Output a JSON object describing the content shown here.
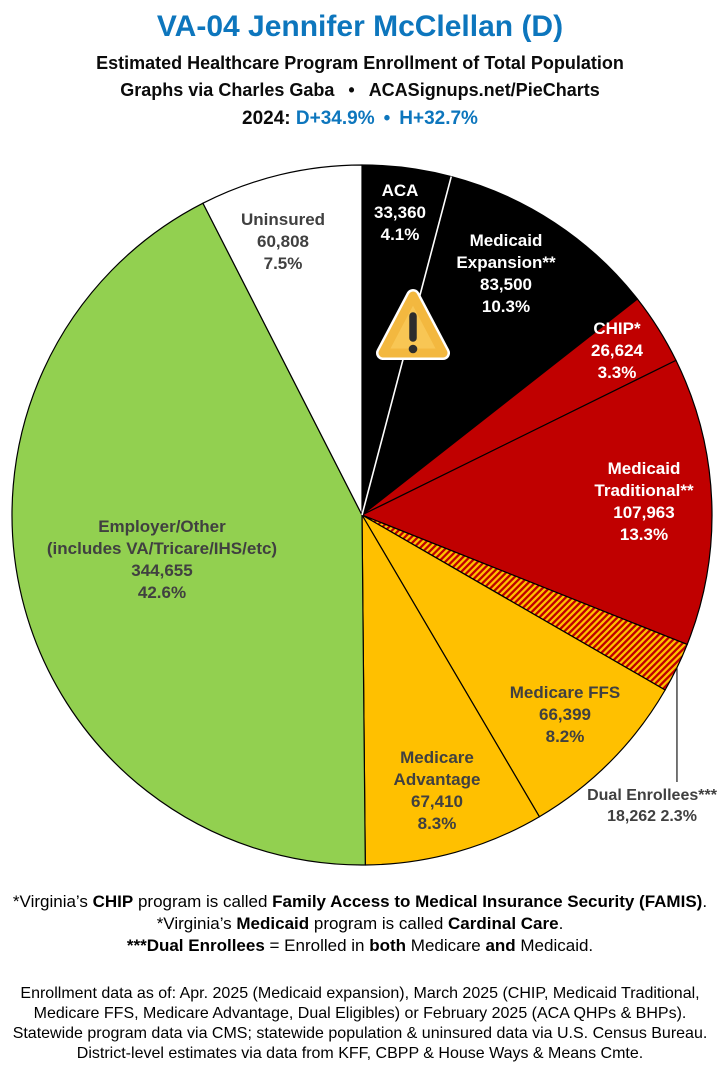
{
  "header": {
    "title": "VA-04 Jennifer McClellan (D)",
    "subtitle": "Estimated Healthcare Program Enrollment of Total Population",
    "credit_left": "Graphs via Charles Gaba",
    "credit_bullet": "•",
    "credit_right": "ACASignups.net/PieCharts",
    "year_label": "2024:",
    "margin_d": "D+34.9%",
    "margin_bullet": "•",
    "margin_h": "H+32.7%"
  },
  "colors": {
    "accent_blue": "#0d76bd",
    "dark_label_text": "#404040",
    "pie_black": "#000000",
    "pie_red": "#c00000",
    "pie_gold": "#ffc000",
    "pie_green": "#92d050",
    "pie_white": "#ffffff",
    "warning_fill": "#f8c654",
    "warning_edge": "#f3b83f",
    "warning_glyph": "#2d2d2d"
  },
  "chart_data": {
    "type": "pie",
    "title": "Estimated Healthcare Program Enrollment of Total Population",
    "start_angle_deg": 0,
    "direction": "clockwise",
    "legend_position": "labels-on-slices",
    "hatch": {
      "bg": "#c00000",
      "stripe": "#ffc000"
    },
    "slices": [
      {
        "key": "aca",
        "label_lines": [
          "ACA"
        ],
        "value": 33360,
        "value_text": "33,360",
        "pct": 4.1,
        "pct_text": "4.1%",
        "color": "#000000",
        "text": "light"
      },
      {
        "key": "medicaid-expansion",
        "label_lines": [
          "Medicaid",
          "Expansion**"
        ],
        "value": 83500,
        "value_text": "83,500",
        "pct": 10.3,
        "pct_text": "10.3%",
        "color": "#000000",
        "text": "light"
      },
      {
        "key": "chip",
        "label_lines": [
          "CHIP*"
        ],
        "value": 26624,
        "value_text": "26,624",
        "pct": 3.3,
        "pct_text": "3.3%",
        "color": "#c00000",
        "text": "light"
      },
      {
        "key": "medicaid-traditional",
        "label_lines": [
          "Medicaid",
          "Traditional**"
        ],
        "value": 107963,
        "value_text": "107,963",
        "pct": 13.3,
        "pct_text": "13.3%",
        "color": "#c00000",
        "text": "light"
      },
      {
        "key": "dual-enrollees",
        "label_lines": [
          "Dual Enrollees***"
        ],
        "value": 18262,
        "value_text": "18,262",
        "pct": 2.3,
        "pct_text": "2.3%",
        "color": "hatch",
        "text": "dark",
        "label_outside": true
      },
      {
        "key": "medicare-ffs",
        "label_lines": [
          "Medicare FFS"
        ],
        "value": 66399,
        "value_text": "66,399",
        "pct": 8.2,
        "pct_text": "8.2%",
        "color": "#ffc000",
        "text": "dark"
      },
      {
        "key": "medicare-advantage",
        "label_lines": [
          "Medicare",
          "Advantage"
        ],
        "value": 67410,
        "value_text": "67,410",
        "pct": 8.3,
        "pct_text": "8.3%",
        "color": "#ffc000",
        "text": "dark"
      },
      {
        "key": "employer-other",
        "label_lines": [
          "Employer/Other",
          "(includes VA/Tricare/IHS/etc)"
        ],
        "value": 344655,
        "value_text": "344,655",
        "pct": 42.6,
        "pct_text": "42.6%",
        "color": "#92d050",
        "text": "dark"
      },
      {
        "key": "uninsured",
        "label_lines": [
          "Uninsured"
        ],
        "value": 60808,
        "value_text": "60,808",
        "pct": 7.5,
        "pct_text": "7.5%",
        "color": "#ffffff",
        "text": "dark"
      }
    ]
  },
  "footnotes": {
    "lines": [
      {
        "segments": [
          {
            "t": "*Virginia’s ",
            "b": 0
          },
          {
            "t": "CHIP",
            "b": 1
          },
          {
            "t": " program is called ",
            "b": 0
          },
          {
            "t": "Family Access to Medical Insurance Security (FAMIS)",
            "b": 1
          },
          {
            "t": ".",
            "b": 0
          }
        ]
      },
      {
        "segments": [
          {
            "t": "*Virginia’s ",
            "b": 0
          },
          {
            "t": "Medicaid",
            "b": 1
          },
          {
            "t": " program is called ",
            "b": 0
          },
          {
            "t": "Cardinal Care",
            "b": 1
          },
          {
            "t": ".",
            "b": 0
          }
        ]
      },
      {
        "segments": [
          {
            "t": "***Dual Enrollees",
            "b": 1
          },
          {
            "t": " = Enrolled in ",
            "b": 0
          },
          {
            "t": "both",
            "b": 1
          },
          {
            "t": " Medicare ",
            "b": 0
          },
          {
            "t": "and",
            "b": 1
          },
          {
            "t": " Medicaid.",
            "b": 0
          }
        ]
      }
    ]
  },
  "source_note": {
    "lines": [
      "Enrollment data as of: Apr. 2025 (Medicaid expansion), March 2025 (CHIP, Medicaid Traditional,",
      "Medicare FFS, Medicare Advantage, Dual Eligibles) or February 2025 (ACA QHPs & BHPs).",
      "Statewide program data via CMS; statewide population & uninsured data via U.S. Census Bureau.",
      "District-level estimates via data from KFF, CBPP & House Ways & Means Cmte."
    ]
  }
}
